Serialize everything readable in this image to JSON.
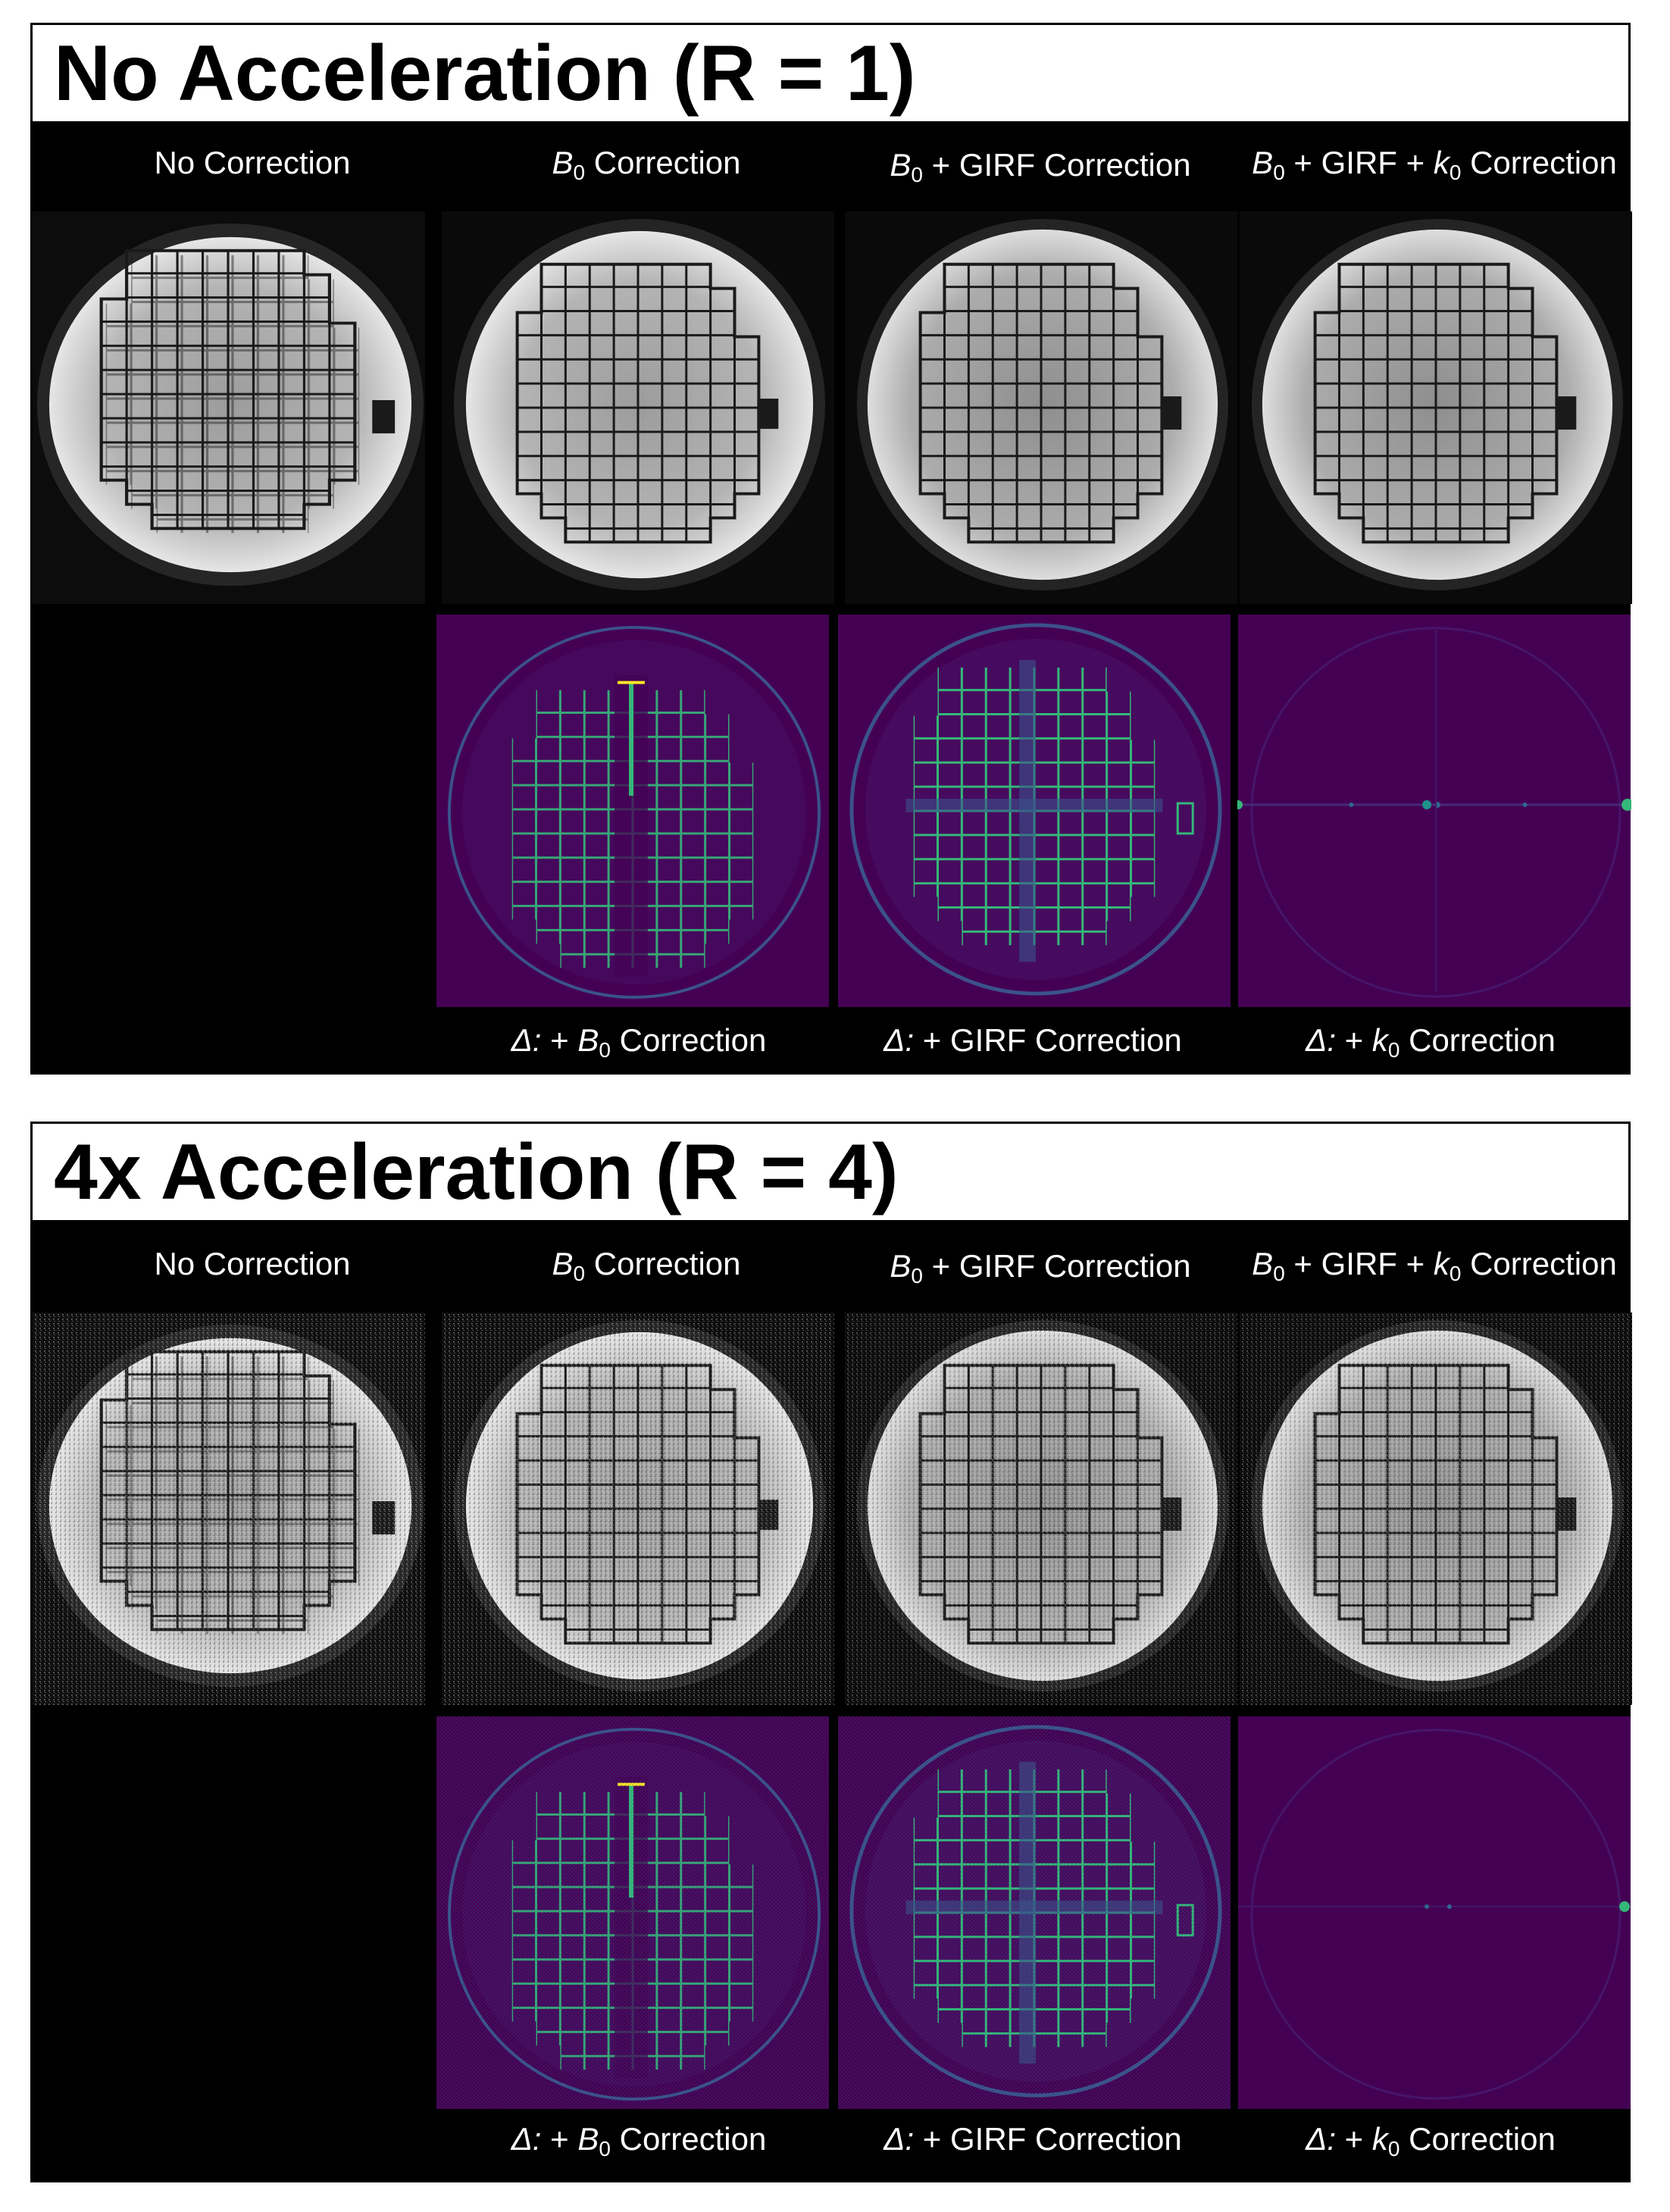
{
  "sections": [
    {
      "title": "No Acceleration (R = 1)",
      "columns": [
        {
          "prefix": "",
          "var": "",
          "sub": "",
          "mid": "",
          "var2": "",
          "sub2": "",
          "suffix": "No Correction"
        },
        {
          "prefix": "",
          "var": "B",
          "sub": "0",
          "mid": "",
          "var2": "",
          "sub2": "",
          "suffix": " Correction"
        },
        {
          "prefix": "",
          "var": "B",
          "sub": "0",
          "mid": "",
          "var2": "",
          "sub2": "",
          "suffix": " + GIRF Correction"
        },
        {
          "prefix": "",
          "var": "B",
          "sub": "0",
          "mid": " + GIRF + ",
          "var2": "k",
          "sub2": "0",
          "suffix": " Correction"
        }
      ],
      "deltas": [
        {
          "prefix": "Δ:",
          "mid": " + ",
          "var": "B",
          "sub": "0",
          "suffix": " Correction"
        },
        {
          "prefix": "Δ:",
          "mid": " + GIRF Correction",
          "var": "",
          "sub": "",
          "suffix": ""
        },
        {
          "prefix": "Δ:",
          "mid": " + ",
          "var": "k",
          "sub": "0",
          "suffix": " Correction"
        }
      ]
    },
    {
      "title": "4x Acceleration (R = 4)",
      "columns": [
        {
          "prefix": "",
          "var": "",
          "sub": "",
          "mid": "",
          "var2": "",
          "sub2": "",
          "suffix": "No Correction"
        },
        {
          "prefix": "",
          "var": "B",
          "sub": "0",
          "mid": "",
          "var2": "",
          "sub2": "",
          "suffix": " Correction"
        },
        {
          "prefix": "",
          "var": "B",
          "sub": "0",
          "mid": "",
          "var2": "",
          "sub2": "",
          "suffix": " + GIRF Correction"
        },
        {
          "prefix": "",
          "var": "B",
          "sub": "0",
          "mid": " + GIRF + ",
          "var2": "k",
          "sub2": "0",
          "suffix": " Correction"
        }
      ],
      "deltas": [
        {
          "prefix": "Δ:",
          "mid": " + ",
          "var": "B",
          "sub": "0",
          "suffix": " Correction"
        },
        {
          "prefix": "Δ:",
          "mid": " + GIRF Correction",
          "var": "",
          "sub": "",
          "suffix": ""
        },
        {
          "prefix": "Δ:",
          "mid": " + ",
          "var": "k",
          "sub": "0",
          "suffix": " Correction"
        }
      ]
    }
  ],
  "colors": {
    "background": "#000000",
    "title_bg": "#ffffff",
    "diff_bg": "#440154",
    "diff_mid": "#31688e",
    "diff_high": "#35b779",
    "diff_peak": "#fde725"
  }
}
